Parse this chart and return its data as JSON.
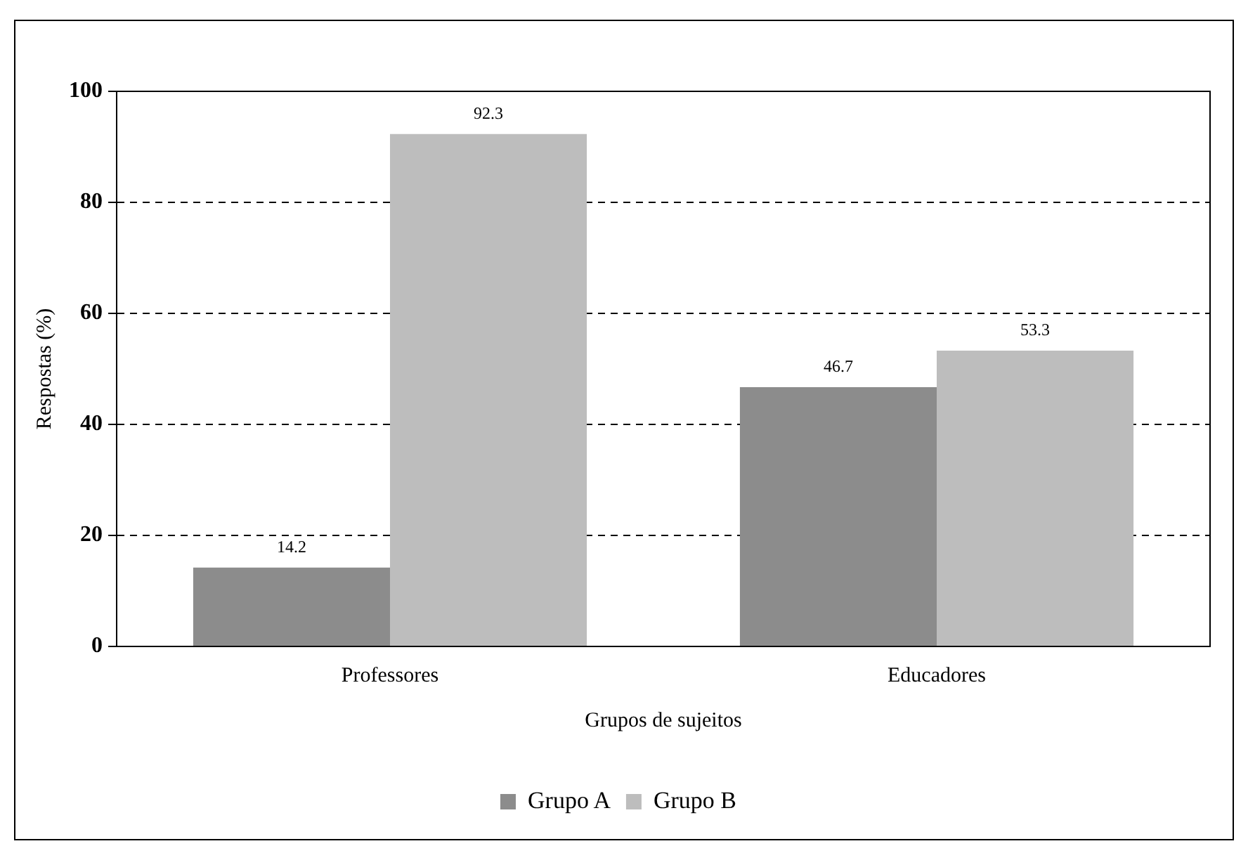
{
  "chart_data": {
    "type": "bar",
    "xlabel": "Grupos de sujeitos",
    "ylabel": "Respostas (%)",
    "categories": [
      "Professores",
      "Educadores"
    ],
    "series": [
      {
        "name": "Grupo A",
        "color": "#8c8c8c",
        "values": [
          14.2,
          46.7
        ]
      },
      {
        "name": "Grupo B",
        "color": "#bdbdbd",
        "values": [
          92.3,
          53.3
        ]
      }
    ],
    "ylim": [
      0,
      100
    ],
    "yticks": [
      0,
      20,
      40,
      60,
      80,
      100
    ],
    "grid": "y",
    "legend": "bottom",
    "data_labels": true,
    "line_style": "dashed"
  }
}
